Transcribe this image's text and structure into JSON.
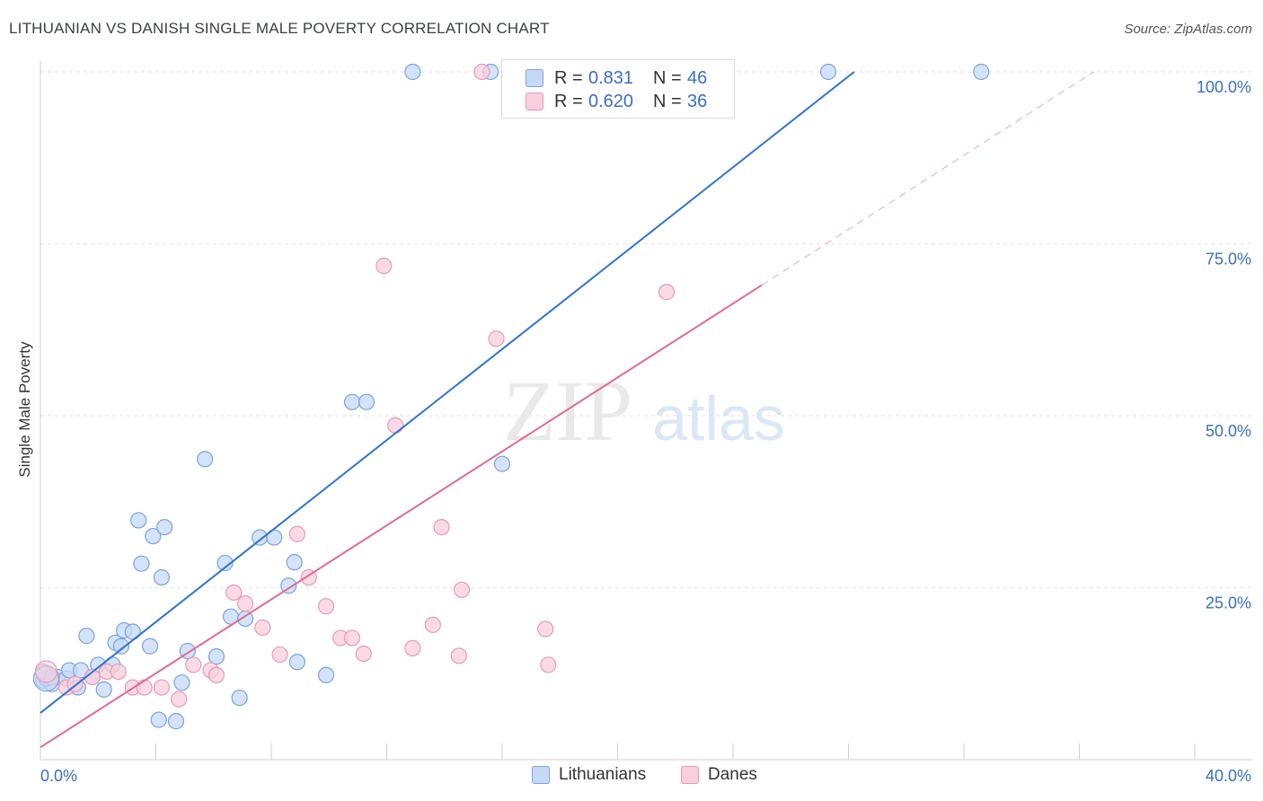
{
  "header": {
    "title": "LITHUANIAN VS DANISH SINGLE MALE POVERTY CORRELATION CHART",
    "source": "Source: ZipAtlas.com"
  },
  "watermark": {
    "zip": "ZIP",
    "atlas": "atlas"
  },
  "legend": {
    "rows": [
      {
        "r_label": "R =",
        "r_value": "0.831",
        "n_label": "N =",
        "n_value": "46"
      },
      {
        "r_label": "R =",
        "r_value": "0.620",
        "n_label": "N =",
        "n_value": "36"
      }
    ]
  },
  "bottom_legend": {
    "series1": "Lithuanians",
    "series2": "Danes"
  },
  "colors": {
    "blue_fill": "#c5d9f5",
    "blue_stroke": "#7aa3df",
    "blue_line": "#2f74d0",
    "pink_fill": "#f8cfdc",
    "pink_stroke": "#e99ab3",
    "pink_line": "#e06a93",
    "tick_label": "#3a6fc4",
    "grid": "#e3e3e3"
  },
  "chart_data": {
    "type": "scatter",
    "title": "LITHUANIAN VS DANISH SINGLE MALE POVERTY CORRELATION CHART",
    "xlabel": "",
    "ylabel": "Single Male Poverty",
    "xlim": [
      0,
      40
    ],
    "ylim": [
      0,
      100
    ],
    "x_tick_labels": [
      "0.0%",
      "40.0%"
    ],
    "y_ticks": [
      25,
      50,
      75,
      100
    ],
    "y_tick_labels": [
      "25.0%",
      "50.0%",
      "75.0%",
      "100.0%"
    ],
    "grid": true,
    "legend_position": "top-center",
    "series": [
      {
        "name": "Lithuanians",
        "r": 0.831,
        "n": 46,
        "trend": {
          "x": [
            0,
            28.2
          ],
          "y": [
            6.8,
            100
          ]
        },
        "points": [
          [
            0.1,
            11.5
          ],
          [
            0.4,
            11.0
          ],
          [
            0.6,
            12.0
          ],
          [
            0.9,
            11.8
          ],
          [
            1.0,
            13.0
          ],
          [
            1.3,
            10.5
          ],
          [
            1.4,
            13.0
          ],
          [
            1.6,
            18.0
          ],
          [
            1.8,
            12.0
          ],
          [
            2.0,
            13.8
          ],
          [
            2.2,
            10.2
          ],
          [
            2.5,
            13.8
          ],
          [
            2.6,
            17.0
          ],
          [
            2.8,
            16.5
          ],
          [
            2.9,
            18.8
          ],
          [
            3.2,
            18.6
          ],
          [
            3.4,
            34.8
          ],
          [
            3.5,
            28.5
          ],
          [
            3.8,
            16.5
          ],
          [
            3.9,
            32.5
          ],
          [
            4.2,
            26.5
          ],
          [
            4.3,
            33.8
          ],
          [
            4.1,
            5.8
          ],
          [
            4.7,
            5.6
          ],
          [
            4.9,
            11.2
          ],
          [
            5.1,
            15.8
          ],
          [
            5.7,
            43.7
          ],
          [
            6.1,
            15.0
          ],
          [
            6.4,
            28.6
          ],
          [
            6.6,
            20.8
          ],
          [
            6.9,
            9.0
          ],
          [
            7.1,
            20.5
          ],
          [
            7.6,
            32.3
          ],
          [
            8.1,
            32.3
          ],
          [
            8.6,
            25.3
          ],
          [
            8.8,
            28.7
          ],
          [
            8.9,
            14.2
          ],
          [
            9.9,
            12.3
          ],
          [
            10.8,
            52.0
          ],
          [
            11.3,
            52.0
          ],
          [
            12.9,
            100
          ],
          [
            15.6,
            100
          ],
          [
            16.0,
            43.0
          ],
          [
            27.3,
            100
          ],
          [
            32.6,
            100
          ],
          [
            0.2,
            11.8
          ]
        ]
      },
      {
        "name": "Danes",
        "r": 0.62,
        "n": 36,
        "trend": {
          "x": [
            0,
            25.0
          ],
          "y": [
            1.8,
            69.0
          ]
        },
        "trend_ext": {
          "x": [
            25.0,
            36.5
          ],
          "y": [
            69.0,
            100
          ]
        },
        "points": [
          [
            0.1,
            12.8
          ],
          [
            0.4,
            12.0
          ],
          [
            0.9,
            10.5
          ],
          [
            1.2,
            11.0
          ],
          [
            1.8,
            12.0
          ],
          [
            2.3,
            12.8
          ],
          [
            2.7,
            12.8
          ],
          [
            3.2,
            10.5
          ],
          [
            3.6,
            10.5
          ],
          [
            4.2,
            10.5
          ],
          [
            4.8,
            8.8
          ],
          [
            5.3,
            13.8
          ],
          [
            5.9,
            13.0
          ],
          [
            6.1,
            12.3
          ],
          [
            6.7,
            24.3
          ],
          [
            7.1,
            22.7
          ],
          [
            7.7,
            19.2
          ],
          [
            8.3,
            15.3
          ],
          [
            8.9,
            32.8
          ],
          [
            9.3,
            26.5
          ],
          [
            9.9,
            22.3
          ],
          [
            10.4,
            17.7
          ],
          [
            10.8,
            17.7
          ],
          [
            11.2,
            15.4
          ],
          [
            11.9,
            71.8
          ],
          [
            12.3,
            48.6
          ],
          [
            12.9,
            16.2
          ],
          [
            13.6,
            19.6
          ],
          [
            13.9,
            33.8
          ],
          [
            14.5,
            15.1
          ],
          [
            14.6,
            24.7
          ],
          [
            15.3,
            100
          ],
          [
            15.8,
            61.2
          ],
          [
            17.5,
            19.0
          ],
          [
            17.6,
            13.8
          ],
          [
            21.7,
            68.0
          ]
        ]
      }
    ]
  }
}
